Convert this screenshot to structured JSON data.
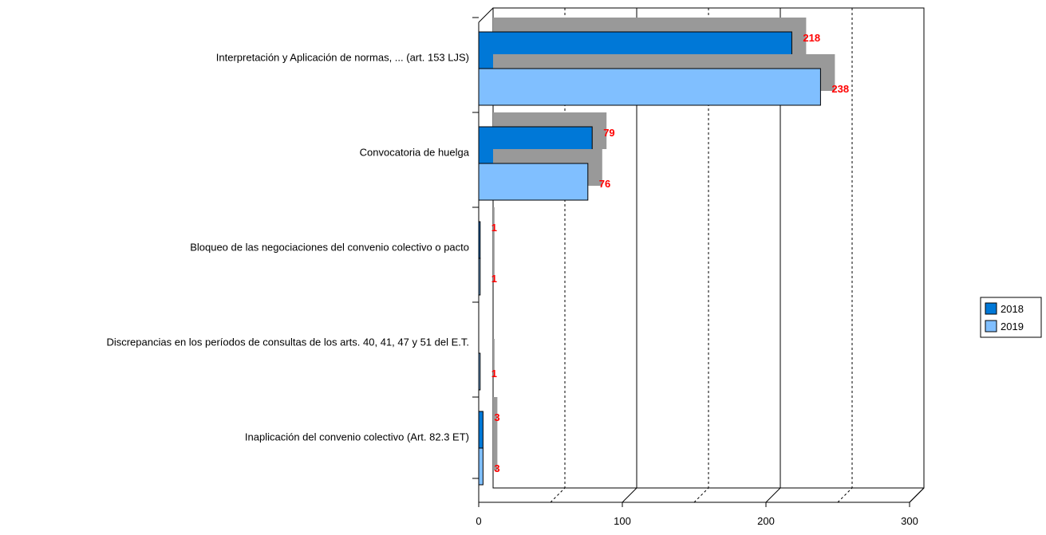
{
  "chart_data": {
    "type": "bar",
    "orientation": "horizontal",
    "style": "3d-clustered",
    "categories": [
      "Interpretación y Aplicación de normas, ... (art. 153 LJS)",
      "Convocatoria de huelga",
      "Bloqueo de las negociaciones del convenio colectivo  o pacto",
      "Discrepancias en los períodos de consultas de los arts. 40, 41, 47 y 51 del E.T.",
      "Inaplicación del convenio colectivo (Art. 82.3 ET)"
    ],
    "series": [
      {
        "name": "2018",
        "color": "#0078d7",
        "values": [
          218,
          79,
          1,
          null,
          3
        ],
        "labels": [
          "218",
          "79",
          "1",
          "",
          "3"
        ]
      },
      {
        "name": "2019",
        "color": "#80bfff",
        "values": [
          238,
          76,
          1,
          1,
          3
        ],
        "labels": [
          "238",
          "76",
          "1",
          "1",
          "3"
        ]
      }
    ],
    "xlim": [
      0,
      300
    ],
    "xticks": [
      "0",
      "100",
      "200",
      "300"
    ],
    "grid": true,
    "legend": "right",
    "data_label_color": "#ff0000",
    "shadow_color": "#999999",
    "title": "",
    "xlabel": "",
    "ylabel": ""
  }
}
